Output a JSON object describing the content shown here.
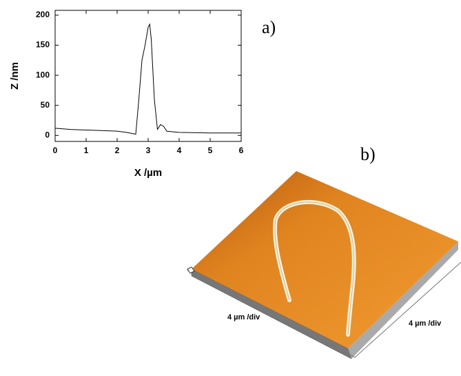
{
  "chart_data": {
    "type": "line",
    "annotation": "a)",
    "x_label": "X /µm",
    "y_label": "Z /nm",
    "x": [
      0,
      0.5,
      1,
      1.5,
      2,
      2.3,
      2.6,
      2.7,
      2.8,
      2.9,
      3.0,
      3.05,
      3.1,
      3.2,
      3.3,
      3.4,
      3.5,
      3.6,
      4,
      5,
      6
    ],
    "series": [
      {
        "color": "#000000",
        "values": [
          12,
          10,
          9,
          8,
          7,
          5,
          2,
          60,
          125,
          150,
          180,
          185,
          160,
          60,
          10,
          18,
          15,
          7,
          5,
          4,
          4
        ]
      }
    ],
    "xlim": [
      0,
      6
    ],
    "xticks": [
      0,
      1,
      2,
      3,
      4,
      5,
      6
    ],
    "ylim": [
      -10,
      208
    ],
    "yticks": [
      0,
      50,
      100,
      150,
      200
    ]
  },
  "image": {
    "label": "b)",
    "x_scale": "4 µm /div",
    "y_scale": "4 µm /div"
  }
}
